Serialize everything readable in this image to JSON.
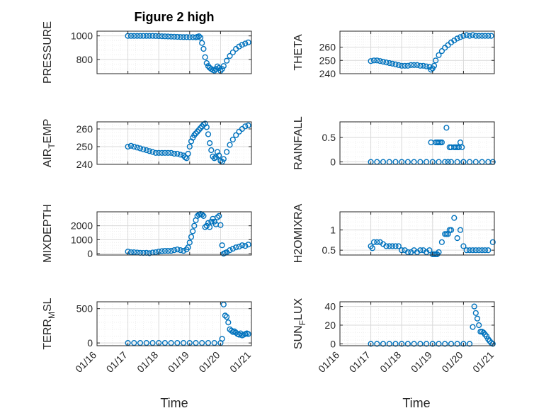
{
  "figure": {
    "title": "Figure 2 high",
    "xlabel": "Time"
  },
  "colors": {
    "marker": "#0072BD",
    "axis": "#262626",
    "grid": "#d9d9d9",
    "minorgrid": "#ececec"
  },
  "chart_data": [
    {
      "type": "scatter",
      "ylabel": "PRESSURE",
      "label_main": "PRESSURE",
      "label_sub": "",
      "ylim": [
        680,
        1040
      ],
      "yticks": [
        800,
        1000
      ],
      "xlim": [
        0,
        5
      ],
      "grid": true,
      "x": [
        1.0,
        1.1,
        1.2,
        1.3,
        1.4,
        1.5,
        1.6,
        1.7,
        1.8,
        1.9,
        2.0,
        2.1,
        2.2,
        2.3,
        2.4,
        2.5,
        2.6,
        2.7,
        2.8,
        2.9,
        3.0,
        3.1,
        3.2,
        3.25,
        3.3,
        3.35,
        3.4,
        3.45,
        3.5,
        3.55,
        3.6,
        3.65,
        3.7,
        3.75,
        3.8,
        3.85,
        3.9,
        3.95,
        4.0,
        4.05,
        4.1,
        4.2,
        4.3,
        4.4,
        4.5,
        4.6,
        4.7,
        4.8,
        4.9
      ],
      "y": [
        1000,
        1000,
        1000,
        1000,
        1000,
        1000,
        1000,
        1000,
        1000,
        999,
        998,
        997,
        996,
        995,
        994,
        993,
        992,
        991,
        990,
        990,
        989,
        989,
        988,
        992,
        997,
        985,
        940,
        890,
        820,
        770,
        745,
        730,
        720,
        712,
        706,
        720,
        742,
        728,
        705,
        720,
        745,
        790,
        830,
        860,
        890,
        910,
        925,
        935,
        945
      ]
    },
    {
      "type": "scatter",
      "ylabel": "THETA",
      "label_main": "THETA",
      "label_sub": "",
      "ylim": [
        240,
        272
      ],
      "yticks": [
        240,
        250,
        260
      ],
      "xlim": [
        0,
        5
      ],
      "grid": true,
      "x": [
        1.0,
        1.1,
        1.2,
        1.3,
        1.4,
        1.5,
        1.6,
        1.7,
        1.8,
        1.9,
        2.0,
        2.1,
        2.2,
        2.3,
        2.4,
        2.5,
        2.6,
        2.7,
        2.8,
        2.9,
        2.95,
        3.0,
        3.05,
        3.1,
        3.2,
        3.3,
        3.4,
        3.5,
        3.6,
        3.7,
        3.8,
        3.9,
        4.0,
        4.1,
        4.2,
        4.3,
        4.4,
        4.5,
        4.6,
        4.7,
        4.8,
        4.9
      ],
      "y": [
        249.5,
        250,
        250,
        249.5,
        249,
        248.5,
        248,
        247.5,
        247,
        246.5,
        246,
        246,
        246,
        246.5,
        246.5,
        246.5,
        246,
        246,
        245.5,
        245,
        243,
        244,
        246,
        250,
        254,
        257,
        259.5,
        261.5,
        263.5,
        265,
        266.5,
        267.5,
        268.5,
        269,
        268.5,
        269,
        268.5,
        268.5,
        268.5,
        268.5,
        268.5,
        268.5
      ]
    },
    {
      "type": "scatter",
      "ylabel": "AIR_TEMP",
      "label_main": "AIR",
      "label_sub": "T",
      "label_tail": "EMP",
      "ylim": [
        240,
        264
      ],
      "yticks": [
        240,
        250,
        260
      ],
      "xlim": [
        0,
        5
      ],
      "grid": true,
      "x": [
        1.0,
        1.1,
        1.2,
        1.3,
        1.4,
        1.5,
        1.6,
        1.7,
        1.8,
        1.9,
        2.0,
        2.1,
        2.2,
        2.3,
        2.4,
        2.5,
        2.6,
        2.7,
        2.8,
        2.85,
        2.9,
        2.95,
        3.0,
        3.05,
        3.1,
        3.15,
        3.2,
        3.25,
        3.3,
        3.35,
        3.4,
        3.45,
        3.5,
        3.55,
        3.6,
        3.65,
        3.7,
        3.75,
        3.8,
        3.85,
        3.9,
        3.95,
        4.0,
        4.05,
        4.1,
        4.2,
        4.3,
        4.4,
        4.5,
        4.6,
        4.7,
        4.8,
        4.9
      ],
      "y": [
        250,
        250.5,
        250,
        249.5,
        249,
        248.5,
        248,
        247.5,
        247,
        246.5,
        246.5,
        246.5,
        246.5,
        246.5,
        246.5,
        246,
        246,
        245.5,
        245,
        244,
        243.5,
        246,
        250,
        253,
        255,
        256.5,
        257.5,
        258.5,
        259.5,
        260.5,
        261.5,
        262.5,
        263,
        261,
        257,
        252,
        248,
        244.5,
        243.5,
        244,
        247,
        245,
        242,
        241.5,
        243,
        247,
        251,
        254,
        256.5,
        258.5,
        260,
        261.5,
        262
      ]
    },
    {
      "type": "scatter",
      "ylabel": "RAINFALL",
      "label_main": "RAINFALL",
      "label_sub": "",
      "ylim": [
        -0.05,
        0.82
      ],
      "yticks": [
        0,
        0.5
      ],
      "xlim": [
        0,
        5
      ],
      "grid": true,
      "x": [
        1.0,
        1.2,
        1.4,
        1.6,
        1.8,
        2.0,
        2.2,
        2.4,
        2.6,
        2.8,
        3.0,
        3.2,
        3.4,
        3.5,
        3.6,
        3.8,
        4.0,
        4.2,
        4.4,
        4.6,
        4.8,
        4.95,
        2.95,
        3.1,
        3.15,
        3.2,
        3.25,
        3.3,
        3.45,
        3.55,
        3.6,
        3.7,
        3.75,
        3.8,
        3.85,
        3.9,
        3.95,
        4.0
      ],
      "y": [
        0,
        0,
        0,
        0,
        0,
        0,
        0,
        0,
        0,
        0,
        0,
        0,
        0,
        0,
        0,
        0,
        0,
        0,
        0,
        0,
        0,
        0,
        0.4,
        0.4,
        0.4,
        0.4,
        0.4,
        0.4,
        0.7,
        0.3,
        0.3,
        0.3,
        0.3,
        0.3,
        0.3,
        0.4,
        0.3,
        0
      ]
    },
    {
      "type": "scatter",
      "ylabel": "MIXDEPTH",
      "label_main": "MIXDEPTH",
      "label_sub": "",
      "ylim": [
        -100,
        3000
      ],
      "yticks": [
        0,
        1000,
        2000
      ],
      "xlim": [
        0,
        5
      ],
      "grid": true,
      "x": [
        1.0,
        1.1,
        1.2,
        1.3,
        1.4,
        1.5,
        1.6,
        1.7,
        1.8,
        1.9,
        2.0,
        2.1,
        2.2,
        2.3,
        2.4,
        2.5,
        2.6,
        2.7,
        2.8,
        2.9,
        2.95,
        3.0,
        3.05,
        3.1,
        3.15,
        3.2,
        3.25,
        3.3,
        3.35,
        3.4,
        3.45,
        3.5,
        3.55,
        3.6,
        3.65,
        3.7,
        3.75,
        3.8,
        3.85,
        3.9,
        3.95,
        4.0,
        4.05,
        4.1,
        4.15,
        4.2,
        4.3,
        4.4,
        4.5,
        4.6,
        4.7,
        4.8,
        4.9
      ],
      "y": [
        150,
        100,
        100,
        80,
        60,
        50,
        60,
        30,
        80,
        100,
        150,
        180,
        200,
        200,
        200,
        250,
        300,
        250,
        200,
        300,
        450,
        800,
        1200,
        1600,
        2000,
        2400,
        2700,
        2800,
        2850,
        2800,
        2700,
        1900,
        2000,
        2200,
        1900,
        2300,
        2500,
        2300,
        2100,
        2600,
        2700,
        2050,
        600,
        0,
        50,
        100,
        250,
        350,
        450,
        500,
        600,
        550,
        650
      ]
    },
    {
      "type": "scatter",
      "ylabel": "H2OMIXRA",
      "label_main": "H2OMIXRA",
      "label_sub": "",
      "ylim": [
        0.38,
        1.45
      ],
      "yticks": [
        0.5,
        1
      ],
      "xlim": [
        0,
        5
      ],
      "grid": true,
      "x": [
        1.0,
        1.05,
        1.1,
        1.2,
        1.3,
        1.4,
        1.5,
        1.6,
        1.7,
        1.8,
        1.9,
        2.0,
        2.1,
        2.2,
        2.3,
        2.4,
        2.5,
        2.6,
        2.7,
        2.8,
        2.9,
        3.0,
        3.05,
        3.1,
        3.15,
        3.2,
        3.3,
        3.4,
        3.45,
        3.5,
        3.55,
        3.6,
        3.7,
        3.8,
        3.9,
        4.0,
        4.1,
        4.2,
        4.3,
        4.4,
        4.5,
        4.6,
        4.7,
        4.8,
        4.95
      ],
      "y": [
        0.6,
        0.55,
        0.7,
        0.7,
        0.7,
        0.65,
        0.6,
        0.6,
        0.6,
        0.6,
        0.6,
        0.5,
        0.5,
        0.45,
        0.45,
        0.5,
        0.45,
        0.5,
        0.5,
        0.45,
        0.5,
        0.4,
        0.4,
        0.4,
        0.4,
        0.45,
        0.7,
        0.9,
        0.9,
        0.9,
        1.0,
        1.0,
        1.3,
        0.8,
        1.0,
        0.6,
        0.5,
        0.5,
        0.5,
        0.5,
        0.5,
        0.5,
        0.5,
        0.5,
        0.7
      ]
    },
    {
      "type": "scatter",
      "ylabel": "TERR_MSL",
      "label_main": "TERR",
      "label_sub": "M",
      "label_tail": "SL",
      "ylim": [
        -40,
        600
      ],
      "yticks": [
        0,
        500
      ],
      "xlim": [
        0,
        5
      ],
      "grid": true,
      "x": [
        1.0,
        1.2,
        1.4,
        1.6,
        1.8,
        2.0,
        2.2,
        2.4,
        2.6,
        2.8,
        3.0,
        3.2,
        3.4,
        3.6,
        3.8,
        4.0,
        4.05,
        4.1,
        4.15,
        4.2,
        4.25,
        4.3,
        4.35,
        4.4,
        4.45,
        4.5,
        4.55,
        4.6,
        4.65,
        4.7,
        4.75,
        4.8,
        4.85,
        4.9
      ],
      "y": [
        0,
        0,
        0,
        0,
        0,
        0,
        0,
        0,
        0,
        0,
        0,
        0,
        0,
        0,
        0,
        0,
        60,
        560,
        400,
        380,
        300,
        200,
        180,
        160,
        170,
        150,
        130,
        120,
        140,
        110,
        120,
        130,
        140,
        130
      ]
    },
    {
      "type": "scatter",
      "ylabel": "SUN_FLUX",
      "label_main": "SUN",
      "label_sub": "F",
      "label_tail": "LUX",
      "ylim": [
        -2,
        45
      ],
      "yticks": [
        0,
        20,
        40
      ],
      "xlim": [
        0,
        5
      ],
      "grid": true,
      "x": [
        1.0,
        1.2,
        1.4,
        1.6,
        1.8,
        2.0,
        2.2,
        2.4,
        2.6,
        2.8,
        3.0,
        3.2,
        3.4,
        3.6,
        3.8,
        4.0,
        4.2,
        4.3,
        4.35,
        4.4,
        4.45,
        4.5,
        4.55,
        4.6,
        4.65,
        4.7,
        4.75,
        4.8,
        4.85,
        4.9,
        4.95
      ],
      "y": [
        0,
        0,
        0,
        0,
        0,
        0,
        0,
        0,
        0,
        0,
        0,
        0,
        0,
        0,
        0,
        0,
        0,
        18,
        40,
        33,
        27,
        20,
        13,
        13,
        12,
        10,
        8,
        5,
        3,
        1,
        0
      ]
    }
  ],
  "xticks": {
    "positions": [
      0,
      1,
      2,
      3,
      4,
      5
    ],
    "labels": [
      "01/16",
      "01/17",
      "01/18",
      "01/19",
      "01/20",
      "01/21"
    ]
  }
}
